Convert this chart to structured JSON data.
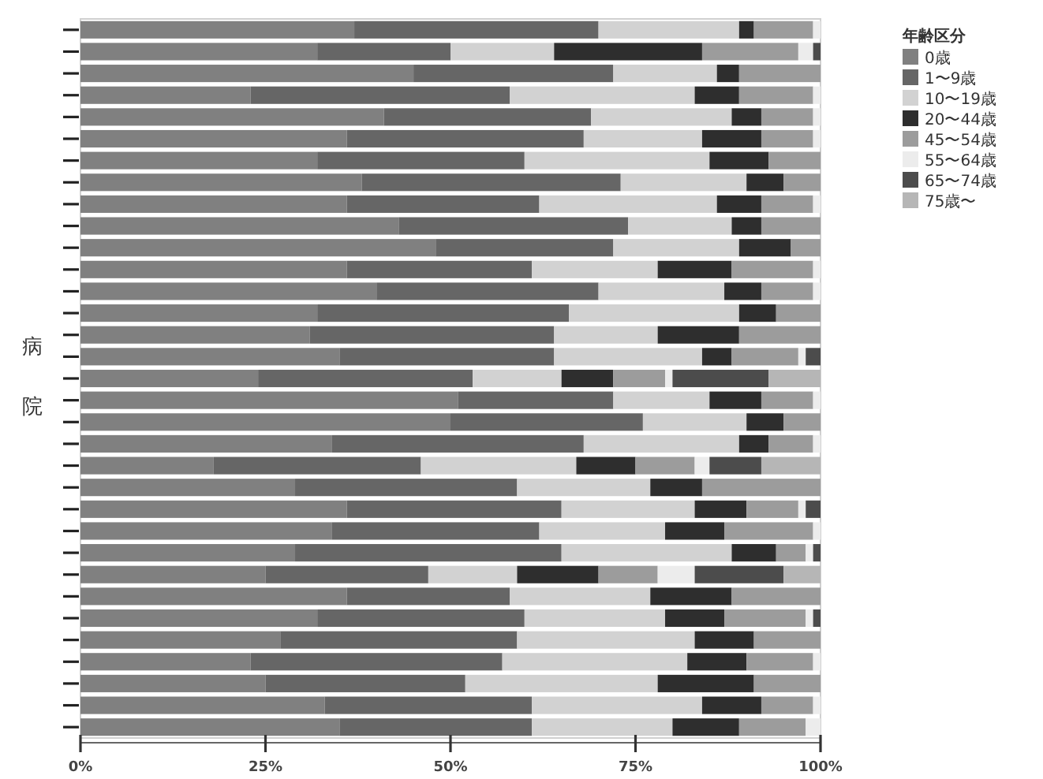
{
  "chart_data": {
    "type": "bar",
    "orientation": "horizontal",
    "stacked": true,
    "ylabel": "病院",
    "legend_title": "年齢区分",
    "legend": "top right",
    "categories": [
      null,
      null,
      null,
      null,
      null,
      null,
      null,
      null,
      null,
      null,
      null,
      null,
      null,
      null,
      null,
      null,
      null,
      null,
      null,
      null,
      null,
      null,
      null,
      null,
      null,
      null,
      null,
      null,
      null,
      null,
      null,
      null,
      null
    ],
    "xlim": [
      0,
      100
    ],
    "xticks": [
      {
        "value": 0,
        "label": "0%"
      },
      {
        "value": 25,
        "label": "25%"
      },
      {
        "value": 50,
        "label": "50%"
      },
      {
        "value": 75,
        "label": "75%"
      },
      {
        "value": 100,
        "label": "100%"
      }
    ],
    "series": [
      {
        "name": "0歳",
        "color": "#808080",
        "values": [
          37,
          32,
          45,
          23,
          41,
          36,
          32,
          38,
          36,
          43,
          48,
          36,
          40,
          32,
          31,
          35,
          24,
          51,
          50,
          34,
          18,
          29,
          36,
          34,
          29,
          25,
          36,
          32,
          27,
          23,
          25,
          33,
          35
        ]
      },
      {
        "name": "1〜9歳",
        "color": "#666666",
        "values": [
          33,
          18,
          27,
          35,
          28,
          32,
          28,
          35,
          26,
          31,
          24,
          25,
          30,
          34,
          33,
          29,
          29,
          21,
          26,
          34,
          28,
          30,
          29,
          28,
          36,
          22,
          22,
          28,
          32,
          34,
          27,
          28,
          26
        ]
      },
      {
        "name": "10〜19歳",
        "color": "#d2d2d2",
        "values": [
          19,
          14,
          14,
          25,
          19,
          16,
          25,
          17,
          24,
          14,
          17,
          17,
          17,
          23,
          14,
          20,
          12,
          13,
          14,
          21,
          21,
          18,
          18,
          17,
          23,
          12,
          19,
          19,
          24,
          25,
          26,
          23,
          19
        ]
      },
      {
        "name": "20〜44歳",
        "color": "#2e2e2e",
        "values": [
          2,
          20,
          3,
          6,
          4,
          8,
          8,
          5,
          6,
          4,
          7,
          10,
          5,
          5,
          11,
          4,
          7,
          7,
          5,
          4,
          8,
          7,
          7,
          8,
          6,
          11,
          11,
          8,
          8,
          8,
          13,
          8,
          9
        ]
      },
      {
        "name": "45〜54歳",
        "color": "#9c9c9c",
        "values": [
          8,
          13,
          11,
          10,
          7,
          7,
          7,
          5,
          7,
          8,
          4,
          11,
          7,
          6,
          11,
          9,
          7,
          7,
          5,
          6,
          8,
          16,
          7,
          12,
          4,
          8,
          12,
          11,
          9,
          9,
          9,
          7,
          9
        ]
      },
      {
        "name": "55〜64歳",
        "color": "#ececec",
        "values": [
          1,
          2,
          null,
          1,
          1,
          1,
          null,
          null,
          1,
          null,
          null,
          1,
          1,
          null,
          null,
          1,
          1,
          1,
          null,
          1,
          2,
          null,
          1,
          1,
          1,
          5,
          null,
          1,
          null,
          1,
          null,
          1,
          2
        ]
      },
      {
        "name": "65〜74歳",
        "color": "#4c4c4c",
        "values": [
          null,
          1,
          null,
          null,
          null,
          null,
          null,
          null,
          null,
          null,
          null,
          null,
          null,
          null,
          null,
          2,
          13,
          null,
          null,
          null,
          7,
          null,
          2,
          null,
          1,
          12,
          null,
          1,
          null,
          null,
          null,
          null,
          null
        ]
      },
      {
        "name": "75歳〜",
        "color": "#b6b6b6",
        "values": [
          null,
          null,
          null,
          null,
          null,
          null,
          null,
          null,
          null,
          null,
          null,
          null,
          null,
          null,
          null,
          null,
          7,
          null,
          null,
          null,
          8,
          null,
          null,
          null,
          null,
          5,
          null,
          null,
          null,
          null,
          null,
          null,
          null
        ]
      }
    ]
  }
}
